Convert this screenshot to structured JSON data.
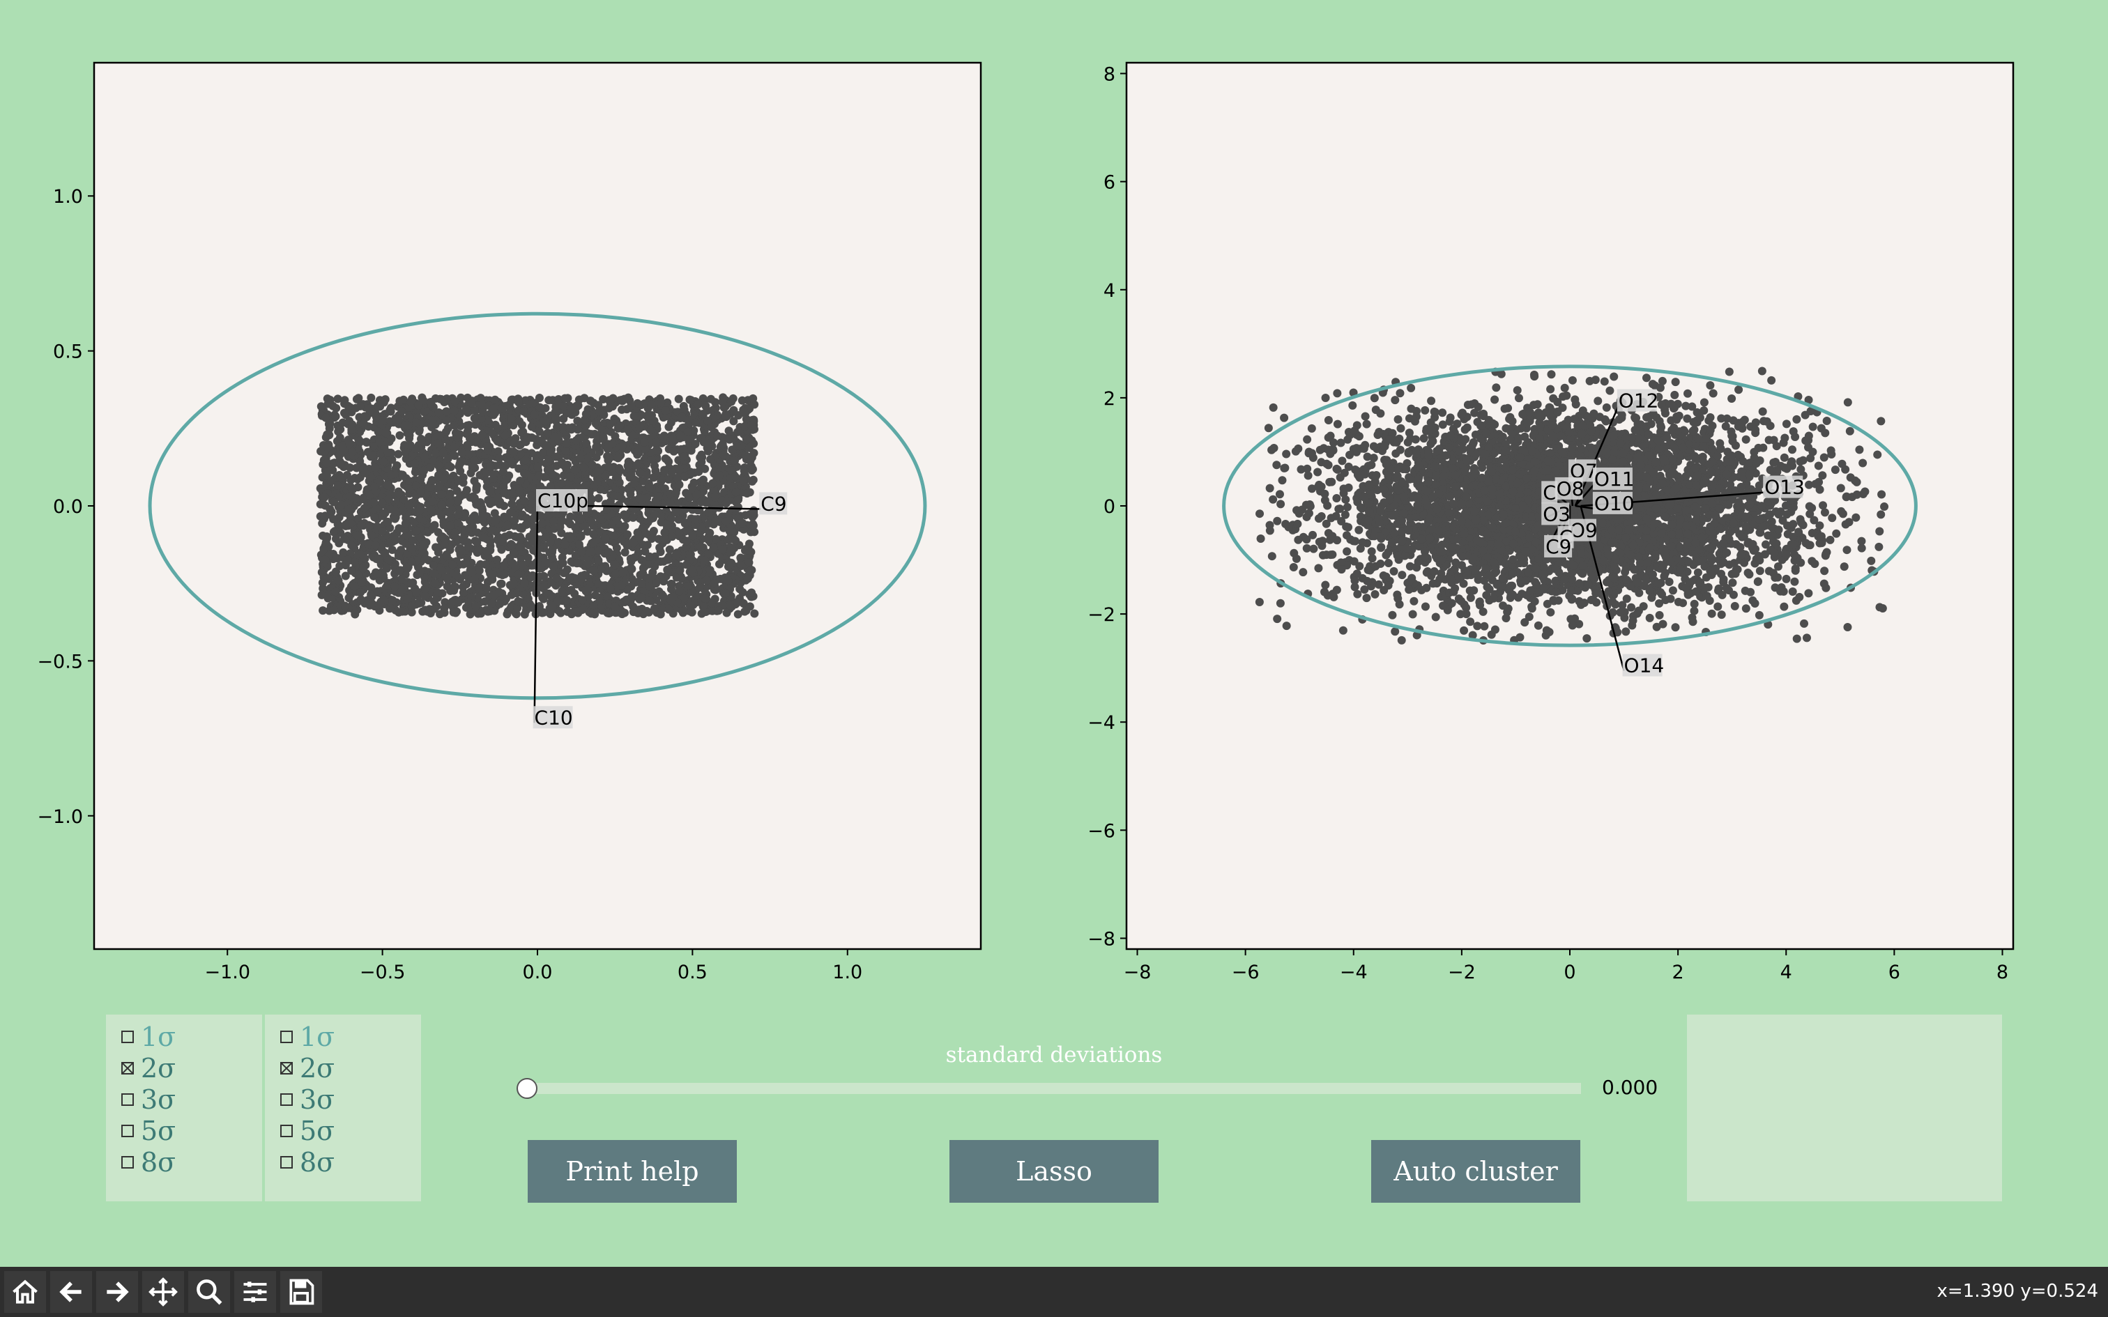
{
  "colors": {
    "background": "#addfb3",
    "axes_face": "#f6f2ef",
    "points": "#4d4d4d",
    "ellipse": "#5ea9a6",
    "button": "#5f7b80",
    "panel": "#cbe6cb",
    "toolbar": "#2e2e2e"
  },
  "chart_data": [
    {
      "type": "scatter",
      "name": "left",
      "xlim": [
        -1.43,
        1.43
      ],
      "ylim": [
        -1.43,
        1.43
      ],
      "xticks": [
        -1.0,
        -0.5,
        0.0,
        0.5,
        1.0
      ],
      "yticks": [
        -1.0,
        -0.5,
        0.0,
        0.5,
        1.0
      ],
      "xtick_labels": [
        "−1.0",
        "−0.5",
        "0.0",
        "0.5",
        "1.0"
      ],
      "ytick_labels": [
        "−1.0",
        "−0.5",
        "0.0",
        "0.5",
        "1.0"
      ],
      "points_region": {
        "shape": "uniform rectangle",
        "x_range": [
          -0.7,
          0.7
        ],
        "y_range": [
          -0.35,
          0.35
        ],
        "count": 4000
      },
      "ellipse": {
        "cx": 0.0,
        "cy": 0.0,
        "rx": 1.25,
        "ry": 0.62
      },
      "annotations": [
        {
          "label": "C10p",
          "x": 0.0,
          "y": 0.0,
          "tx": 0.0,
          "ty": 0.0
        },
        {
          "label": "C9",
          "x": 0.15,
          "y": 0.0,
          "tx": 0.72,
          "ty": -0.01
        },
        {
          "label": "C10",
          "x": 0.0,
          "y": 0.0,
          "tx": -0.01,
          "ty": -0.7
        }
      ]
    },
    {
      "type": "scatter",
      "name": "right",
      "xlim": [
        -8.2,
        8.2
      ],
      "ylim": [
        -8.2,
        8.2
      ],
      "xticks": [
        -8,
        -6,
        -4,
        -2,
        0,
        2,
        4,
        6,
        8
      ],
      "yticks": [
        -8,
        -6,
        -4,
        -2,
        0,
        2,
        4,
        6,
        8
      ],
      "xtick_labels": [
        "−8",
        "−6",
        "−4",
        "−2",
        "0",
        "2",
        "4",
        "6",
        "8"
      ],
      "ytick_labels": [
        "−8",
        "−6",
        "−4",
        "−2",
        "0",
        "2",
        "4",
        "6",
        "8"
      ],
      "points_region": {
        "shape": "gaussian blob",
        "x_mean": 0.0,
        "x_std": 2.2,
        "y_mean": 0.0,
        "y_std": 0.9,
        "count": 5000
      },
      "ellipse": {
        "cx": 0.0,
        "cy": 0.0,
        "rx": 6.4,
        "ry": 2.58
      },
      "annotations": [
        {
          "label": "O12",
          "x": 0.1,
          "y": 0.0,
          "tx": 0.9,
          "ty": 1.85
        },
        {
          "label": "O7",
          "x": 0.05,
          "y": 0.0,
          "tx": 0.0,
          "ty": 0.55
        },
        {
          "label": "O11",
          "x": 0.1,
          "y": 0.0,
          "tx": 0.45,
          "ty": 0.4
        },
        {
          "label": "C",
          "x": 0.0,
          "y": 0.0,
          "tx": -0.5,
          "ty": 0.15
        },
        {
          "label": "O8",
          "x": 0.0,
          "y": 0.0,
          "tx": -0.25,
          "ty": 0.22
        },
        {
          "label": "O10",
          "x": 0.1,
          "y": 0.0,
          "tx": 0.45,
          "ty": -0.05
        },
        {
          "label": "O13",
          "x": 0.2,
          "y": 0.0,
          "tx": 3.6,
          "ty": 0.25
        },
        {
          "label": "O3",
          "x": 0.0,
          "y": 0.0,
          "tx": -0.5,
          "ty": -0.25
        },
        {
          "label": "O9",
          "x": 0.0,
          "y": 0.0,
          "tx": 0.0,
          "ty": -0.55
        },
        {
          "label": "C",
          "x": 0.0,
          "y": 0.0,
          "tx": -0.2,
          "ty": -0.68
        },
        {
          "label": "C9",
          "x": 0.0,
          "y": 0.0,
          "tx": -0.45,
          "ty": -0.85
        },
        {
          "label": "O14",
          "x": 0.2,
          "y": 0.0,
          "tx": 1.0,
          "ty": -3.05
        }
      ]
    }
  ],
  "checkboxes": {
    "left": [
      {
        "label": "1σ",
        "checked": false
      },
      {
        "label": "2σ",
        "checked": true
      },
      {
        "label": "3σ",
        "checked": false
      },
      {
        "label": "5σ",
        "checked": false
      },
      {
        "label": "8σ",
        "checked": false
      }
    ],
    "right": [
      {
        "label": "1σ",
        "checked": false
      },
      {
        "label": "2σ",
        "checked": true
      },
      {
        "label": "3σ",
        "checked": false
      },
      {
        "label": "5σ",
        "checked": false
      },
      {
        "label": "8σ",
        "checked": false
      }
    ]
  },
  "slider": {
    "label": "standard deviations",
    "value_text": "0.000",
    "fraction": 0.0
  },
  "buttons": {
    "print_help": "Print help",
    "lasso": "Lasso",
    "auto_cluster": "Auto cluster"
  },
  "toolbar": {
    "items": [
      "home-icon",
      "back-icon",
      "forward-icon",
      "pan-icon",
      "zoom-icon",
      "configure-icon",
      "save-icon"
    ],
    "coords": "x=1.390 y=0.524"
  }
}
